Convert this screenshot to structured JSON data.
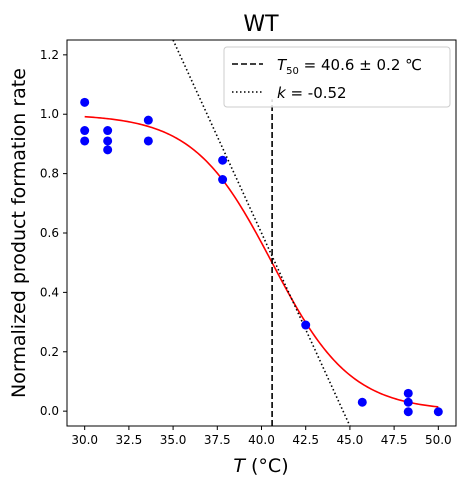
{
  "chart_data": {
    "type": "scatter",
    "title": "WT",
    "xlabel_var": "T",
    "xlabel_unit": " (°C)",
    "ylabel": "Normalized product formation rate",
    "xlim": [
      29.0,
      51.0
    ],
    "ylim": [
      -0.05,
      1.25
    ],
    "xticks": [
      30.0,
      32.5,
      35.0,
      37.5,
      40.0,
      42.5,
      45.0,
      47.5,
      50.0
    ],
    "xtick_labels": [
      "30.0",
      "32.5",
      "35.0",
      "37.5",
      "40.0",
      "42.5",
      "45.0",
      "47.5",
      "50.0"
    ],
    "yticks": [
      0.0,
      0.2,
      0.4,
      0.6,
      0.8,
      1.0,
      1.2
    ],
    "ytick_labels": [
      "0.0",
      "0.2",
      "0.4",
      "0.6",
      "0.8",
      "1.0",
      "1.2"
    ],
    "grid": false,
    "legend_position": "top-right",
    "points": {
      "color": "#0000ff",
      "x": [
        30.0,
        30.0,
        30.0,
        31.3,
        31.3,
        31.3,
        33.6,
        33.6,
        37.8,
        37.8,
        42.5,
        45.7,
        48.3,
        48.3,
        48.3,
        50.0
      ],
      "y": [
        1.04,
        0.945,
        0.91,
        0.945,
        0.91,
        0.88,
        0.98,
        0.91,
        0.845,
        0.78,
        0.29,
        0.03,
        0.06,
        0.03,
        -0.002,
        -0.002
      ]
    },
    "fit_curve": {
      "color": "#ff0000",
      "t50": 40.6,
      "slope_factor": 0.45,
      "top": 1.0,
      "x_range": [
        30.0,
        50.0
      ]
    },
    "t50_line": {
      "x": 40.6,
      "y_range": [
        -0.05,
        1.05
      ],
      "label_var": "T",
      "label_sub": "50",
      "label_rest": " = 40.6 ± 0.2 ℃"
    },
    "slope_line": {
      "k": -0.52,
      "x_range": [
        35.0,
        45.0
      ],
      "y_range": [
        1.25,
        -0.05
      ],
      "label_var": "k",
      "label_rest": " = -0.52"
    }
  }
}
